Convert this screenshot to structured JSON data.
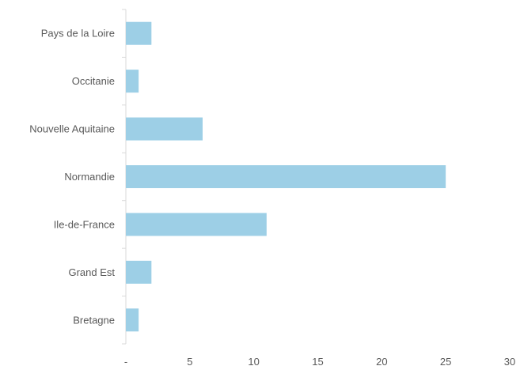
{
  "chart_data": {
    "type": "bar",
    "orientation": "horizontal",
    "categories": [
      "Pays de la Loire",
      "Occitanie",
      "Nouvelle Aquitaine",
      "Normandie",
      "Ile-de-France",
      "Grand Est",
      "Bretagne"
    ],
    "values": [
      2,
      1,
      6,
      25,
      11,
      2,
      1
    ],
    "xlim": [
      0,
      30
    ],
    "x_ticks": [
      "-",
      "5",
      "10",
      "15",
      "20",
      "25",
      "30"
    ],
    "title": "",
    "xlabel": "",
    "ylabel": "",
    "grid": false,
    "legend": "none",
    "bar_color": "#9DCFE6",
    "axis_color": "#D9D9D9",
    "text_color": "#595959"
  }
}
